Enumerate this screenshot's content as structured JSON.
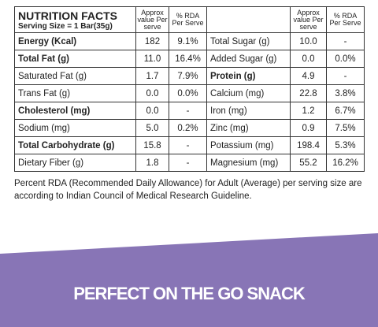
{
  "header": {
    "title": "NUTRITION FACTS",
    "serving": "Serving Size = 1 Bar(35g)",
    "columns": [
      "Approx value Per serve",
      "% RDA Per Serve",
      "Approx value Per serve",
      "% RDA Per Serve"
    ]
  },
  "table": {
    "rows": [
      [
        "Energy (Kcal)",
        "182",
        "9.1%",
        "Total Sugar (g)",
        "10.0",
        "-"
      ],
      [
        "Total Fat (g)",
        "11.0",
        "16.4%",
        "Added Sugar (g)",
        "0.0",
        "0.0%"
      ],
      [
        "Saturated Fat (g)",
        "1.7",
        "7.9%",
        "Protein (g)",
        "4.9",
        "-"
      ],
      [
        "Trans Fat (g)",
        "0.0",
        "0.0%",
        "Calcium (mg)",
        "22.8",
        "3.8%"
      ],
      [
        "Cholesterol (mg)",
        "0.0",
        "-",
        "Iron (mg)",
        "1.2",
        "6.7%"
      ],
      [
        "Sodium (mg)",
        "5.0",
        "0.2%",
        "Zinc (mg)",
        "0.9",
        "7.5%"
      ],
      [
        "Total Carbohydrate (g)",
        "15.8",
        "-",
        "Potassium (mg)",
        "198.4",
        "5.3%"
      ],
      [
        "Dietary Fiber (g)",
        "1.8",
        "-",
        "Magnesium (mg)",
        "55.2",
        "16.2%"
      ]
    ]
  },
  "footnote": "Percent RDA (Recommended Daily Allowance) for Adult (Average) per serving size are according to Indian Council of Medical Research Guideline.",
  "banner": "PERFECT ON THE GO SNACK"
}
